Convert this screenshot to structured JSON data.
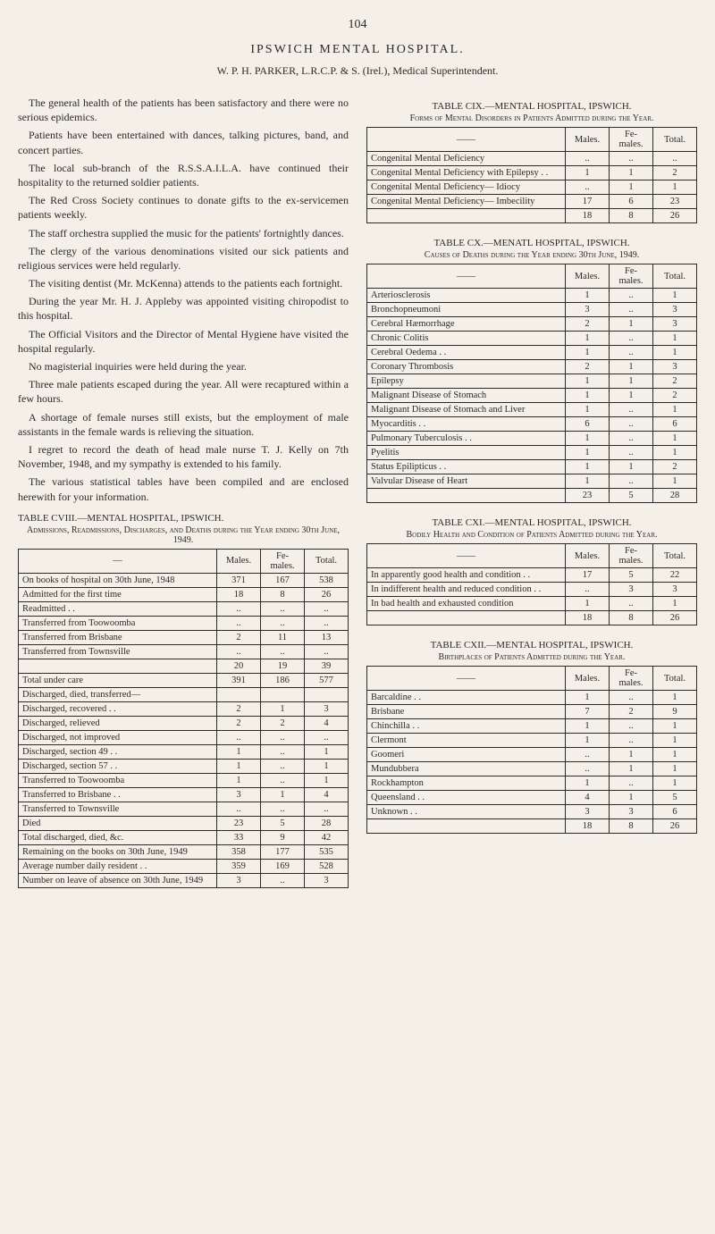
{
  "page_number": "104",
  "header": {
    "title": "IPSWICH MENTAL HOSPITAL.",
    "subtitle": "W. P. H. PARKER, L.R.C.P. & S. (Irel.), Medical Superintendent."
  },
  "paragraphs": [
    "The general health of the patients has been satisfactory and there were no serious epidemics.",
    "Patients have been entertained with dances, talking pictures, band, and concert parties.",
    "The local sub-branch of the R.S.S.A.I.L.A. have continued their hospitality to the returned soldier patients.",
    "The Red Cross Society continues to donate gifts to the ex-servicemen patients weekly.",
    "The staff orchestra supplied the music for the patients' fortnightly dances.",
    "The clergy of the various denominations visited our sick patients and religious services were held regularly.",
    "The visiting dentist (Mr. McKenna) attends to the patients each fortnight.",
    "During the year Mr. H. J. Appleby was appointed visiting chiropodist to this hospital.",
    "The Official Visitors and the Director of Mental Hygiene have visited the hospital regularly.",
    "No magisterial inquiries were held during the year.",
    "Three male patients escaped during the year. All were recaptured within a few hours.",
    "A shortage of female nurses still exists, but the employment of male assistants in the female wards is relieving the situation.",
    "I regret to record the death of head male nurse T. J. Kelly on 7th November, 1948, and my sympathy is extended to his family.",
    "The various statistical tables have been compiled and are enclosed herewith for your information."
  ],
  "table_cviii": {
    "title": "TABLE CVIII.—MENTAL HOSPITAL, IPSWICH.",
    "subtitle": "Admissions, Readmissions, Discharges, and Deaths during the Year ending 30th June, 1949.",
    "columns": [
      "—",
      "Males.",
      "Fe-males.",
      "Total."
    ],
    "rows": [
      [
        "On books of hospital on 30th June, 1948",
        "371",
        "167",
        "538"
      ],
      [
        "Admitted for the first time",
        "18",
        "8",
        "26"
      ],
      [
        "Readmitted . .",
        "..",
        "..",
        ".."
      ],
      [
        "Transferred from Toowoomba",
        "..",
        "..",
        ".."
      ],
      [
        "Transferred from Brisbane",
        "2",
        "11",
        "13"
      ],
      [
        "Transferred from Townsville",
        "..",
        "..",
        ".."
      ],
      [
        "",
        "20",
        "19",
        "39"
      ],
      [
        "Total under care",
        "391",
        "186",
        "577"
      ],
      [
        "Discharged, died, transferred—",
        "",
        "",
        ""
      ],
      [
        "  Discharged, recovered . .",
        "2",
        "1",
        "3"
      ],
      [
        "  Discharged, relieved",
        "2",
        "2",
        "4"
      ],
      [
        "  Discharged, not improved",
        "..",
        "..",
        ".."
      ],
      [
        "  Discharged, section 49 . .",
        "1",
        "..",
        "1"
      ],
      [
        "  Discharged, section 57 . .",
        "1",
        "..",
        "1"
      ],
      [
        "Transferred to Toowoomba",
        "1",
        "..",
        "1"
      ],
      [
        "Transferred to Brisbane . .",
        "3",
        "1",
        "4"
      ],
      [
        "Transferred to Townsville",
        "..",
        "..",
        ".."
      ],
      [
        "Died",
        "23",
        "5",
        "28"
      ],
      [
        "Total discharged, died, &c.",
        "33",
        "9",
        "42"
      ],
      [
        "Remaining on the books on 30th June, 1949",
        "358",
        "177",
        "535"
      ],
      [
        "Average number daily resident . .",
        "359",
        "169",
        "528"
      ],
      [
        "Number on leave of absence on 30th June, 1949",
        "3",
        "..",
        "3"
      ]
    ]
  },
  "table_cix": {
    "title": "TABLE CIX.—MENTAL HOSPITAL, IPSWICH.",
    "subtitle": "Forms of Mental Disorders in Patients Admitted during the Year.",
    "columns": [
      "——",
      "Males.",
      "Fe-males.",
      "Total."
    ],
    "rows": [
      [
        "Congenital Mental Deficiency",
        "..",
        "..",
        ".."
      ],
      [
        "Congenital Mental Deficiency with Epilepsy . .",
        "1",
        "1",
        "2"
      ],
      [
        "Congenital Mental Deficiency— Idiocy",
        "..",
        "1",
        "1"
      ],
      [
        "Congenital Mental Deficiency— Imbecility",
        "17",
        "6",
        "23"
      ],
      [
        "",
        "18",
        "8",
        "26"
      ]
    ]
  },
  "table_cx": {
    "title": "TABLE CX.—MENATL HOSPITAL, IPSWICH.",
    "subtitle": "Causes of Deaths during the Year ending 30th June, 1949.",
    "columns": [
      "——",
      "Males.",
      "Fe-males.",
      "Total."
    ],
    "rows": [
      [
        "Arteriosclerosis",
        "1",
        "..",
        "1"
      ],
      [
        "Bronchopneumoni",
        "3",
        "..",
        "3"
      ],
      [
        "Cerebral Hæmorrhage",
        "2",
        "1",
        "3"
      ],
      [
        "Chronic Colitis",
        "1",
        "..",
        "1"
      ],
      [
        "Cerebral Oedema . .",
        "1",
        "..",
        "1"
      ],
      [
        "Coronary Thrombosis",
        "2",
        "1",
        "3"
      ],
      [
        "Epilepsy",
        "1",
        "1",
        "2"
      ],
      [
        "Malignant Disease of Stomach",
        "1",
        "1",
        "2"
      ],
      [
        "Malignant Disease of Stomach and Liver",
        "1",
        "..",
        "1"
      ],
      [
        "Myocarditis . .",
        "6",
        "..",
        "6"
      ],
      [
        "Pulmonary Tuberculosis . .",
        "1",
        "..",
        "1"
      ],
      [
        "Pyelitis",
        "1",
        "..",
        "1"
      ],
      [
        "Status Epilipticus . .",
        "1",
        "1",
        "2"
      ],
      [
        "Valvular Disease of Heart",
        "1",
        "..",
        "1"
      ],
      [
        "",
        "23",
        "5",
        "28"
      ]
    ]
  },
  "table_cxi": {
    "title": "TABLE CXI.—MENTAL HOSPITAL, IPSWICH.",
    "subtitle": "Bodily Health and Condition of Patients Admitted during the Year.",
    "columns": [
      "——",
      "Males.",
      "Fe-males.",
      "Total."
    ],
    "rows": [
      [
        "In apparently good health and condition . .",
        "17",
        "5",
        "22"
      ],
      [
        "In indifferent health and reduced condition . .",
        "..",
        "3",
        "3"
      ],
      [
        "In bad health and exhausted condition",
        "1",
        "..",
        "1"
      ],
      [
        "",
        "18",
        "8",
        "26"
      ]
    ]
  },
  "table_cxii": {
    "title": "TABLE CXII.—MENTAL HOSPITAL, IPSWICH.",
    "subtitle": "Birthplaces of Patients Admitted during the Year.",
    "columns": [
      "——",
      "Males.",
      "Fe-males.",
      "Total."
    ],
    "rows": [
      [
        "Barcaldine . .",
        "1",
        "..",
        "1"
      ],
      [
        "Brisbane",
        "7",
        "2",
        "9"
      ],
      [
        "Chinchilla . .",
        "1",
        "..",
        "1"
      ],
      [
        "Clermont",
        "1",
        "..",
        "1"
      ],
      [
        "Goomeri",
        "..",
        "1",
        "1"
      ],
      [
        "Mundubbera",
        "..",
        "1",
        "1"
      ],
      [
        "Rockhampton",
        "1",
        "..",
        "1"
      ],
      [
        "Queensland . .",
        "4",
        "1",
        "5"
      ],
      [
        "Unknown . .",
        "3",
        "3",
        "6"
      ],
      [
        "",
        "18",
        "8",
        "26"
      ]
    ]
  }
}
